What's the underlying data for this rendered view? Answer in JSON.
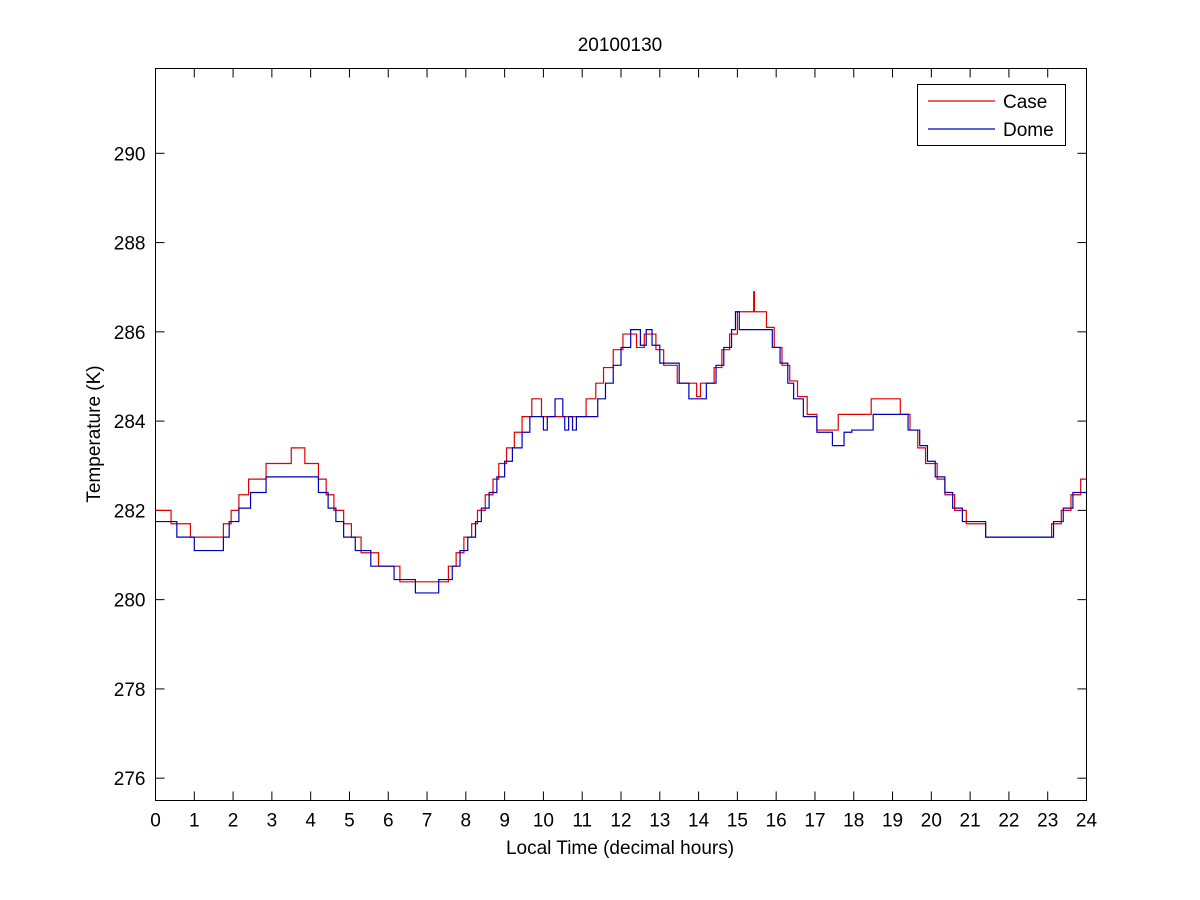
{
  "chart_data": {
    "type": "line",
    "title": "20100130",
    "xlabel": "Local Time (decimal hours)",
    "ylabel": "Temperature (K)",
    "xlim": [
      0,
      24
    ],
    "ylim": [
      275.5,
      291.9
    ],
    "x_ticks": [
      0,
      1,
      2,
      3,
      4,
      5,
      6,
      7,
      8,
      9,
      10,
      11,
      12,
      13,
      14,
      15,
      16,
      17,
      18,
      19,
      20,
      21,
      22,
      23,
      24
    ],
    "y_ticks": [
      276,
      278,
      280,
      282,
      284,
      286,
      288,
      290
    ],
    "grid": false,
    "legend_position": "top-right",
    "series": [
      {
        "name": "Case",
        "color": "#e00000",
        "step": true,
        "points": [
          [
            0,
            282.0
          ],
          [
            0.4,
            281.7
          ],
          [
            0.9,
            281.4
          ],
          [
            1.75,
            281.7
          ],
          [
            1.95,
            282.0
          ],
          [
            2.15,
            282.35
          ],
          [
            2.4,
            282.7
          ],
          [
            2.85,
            283.05
          ],
          [
            3.5,
            283.4
          ],
          [
            3.85,
            283.05
          ],
          [
            4.2,
            282.7
          ],
          [
            4.4,
            282.35
          ],
          [
            4.6,
            282.0
          ],
          [
            4.85,
            281.7
          ],
          [
            5.05,
            281.4
          ],
          [
            5.3,
            281.05
          ],
          [
            5.75,
            280.75
          ],
          [
            6.3,
            280.4
          ],
          [
            7.55,
            280.75
          ],
          [
            7.75,
            281.05
          ],
          [
            7.95,
            281.4
          ],
          [
            8.15,
            281.7
          ],
          [
            8.3,
            282.0
          ],
          [
            8.5,
            282.35
          ],
          [
            8.7,
            282.7
          ],
          [
            8.85,
            283.05
          ],
          [
            9.05,
            283.4
          ],
          [
            9.25,
            283.75
          ],
          [
            9.45,
            284.1
          ],
          [
            9.7,
            284.5
          ],
          [
            9.95,
            284.1
          ],
          [
            11.1,
            284.5
          ],
          [
            11.35,
            284.85
          ],
          [
            11.55,
            285.2
          ],
          [
            11.8,
            285.6
          ],
          [
            12.05,
            285.95
          ],
          [
            12.4,
            285.65
          ],
          [
            12.6,
            285.95
          ],
          [
            12.9,
            285.6
          ],
          [
            13.1,
            285.25
          ],
          [
            13.45,
            284.85
          ],
          [
            13.95,
            284.55
          ],
          [
            14.05,
            284.85
          ],
          [
            14.4,
            285.2
          ],
          [
            14.6,
            285.6
          ],
          [
            14.8,
            285.95
          ],
          [
            15.0,
            286.45
          ],
          [
            15.42,
            286.9
          ],
          [
            15.44,
            286.45
          ],
          [
            15.75,
            286.1
          ],
          [
            15.95,
            285.65
          ],
          [
            16.15,
            285.25
          ],
          [
            16.35,
            284.9
          ],
          [
            16.55,
            284.55
          ],
          [
            16.8,
            284.15
          ],
          [
            17.05,
            283.8
          ],
          [
            17.6,
            284.15
          ],
          [
            18.45,
            284.5
          ],
          [
            19.2,
            284.15
          ],
          [
            19.45,
            283.8
          ],
          [
            19.65,
            283.4
          ],
          [
            19.85,
            283.05
          ],
          [
            20.15,
            282.7
          ],
          [
            20.35,
            282.35
          ],
          [
            20.6,
            282.0
          ],
          [
            20.9,
            281.7
          ],
          [
            21.4,
            281.4
          ],
          [
            23.1,
            281.7
          ],
          [
            23.35,
            282.0
          ],
          [
            23.6,
            282.35
          ],
          [
            23.85,
            282.7
          ],
          [
            24,
            282.7
          ]
        ]
      },
      {
        "name": "Dome",
        "color": "#0000c0",
        "step": true,
        "points": [
          [
            0,
            281.75
          ],
          [
            0.55,
            281.4
          ],
          [
            1.0,
            281.1
          ],
          [
            1.75,
            281.4
          ],
          [
            1.9,
            281.75
          ],
          [
            2.15,
            282.05
          ],
          [
            2.45,
            282.4
          ],
          [
            2.85,
            282.75
          ],
          [
            4.2,
            282.4
          ],
          [
            4.45,
            282.05
          ],
          [
            4.65,
            281.75
          ],
          [
            4.85,
            281.4
          ],
          [
            5.15,
            281.1
          ],
          [
            5.55,
            280.75
          ],
          [
            6.15,
            280.45
          ],
          [
            6.7,
            280.15
          ],
          [
            7.3,
            280.45
          ],
          [
            7.65,
            280.75
          ],
          [
            7.85,
            281.1
          ],
          [
            8.05,
            281.4
          ],
          [
            8.25,
            281.75
          ],
          [
            8.4,
            282.05
          ],
          [
            8.6,
            282.4
          ],
          [
            8.8,
            282.75
          ],
          [
            9.0,
            283.1
          ],
          [
            9.2,
            283.4
          ],
          [
            9.45,
            283.75
          ],
          [
            9.65,
            284.1
          ],
          [
            10.0,
            283.8
          ],
          [
            10.1,
            284.1
          ],
          [
            10.3,
            284.5
          ],
          [
            10.5,
            284.1
          ],
          [
            10.55,
            283.8
          ],
          [
            10.65,
            284.1
          ],
          [
            10.75,
            283.8
          ],
          [
            10.85,
            284.1
          ],
          [
            11.4,
            284.5
          ],
          [
            11.6,
            284.85
          ],
          [
            11.8,
            285.25
          ],
          [
            12.0,
            285.65
          ],
          [
            12.25,
            286.05
          ],
          [
            12.5,
            285.7
          ],
          [
            12.65,
            286.05
          ],
          [
            12.8,
            285.7
          ],
          [
            13.0,
            285.3
          ],
          [
            13.5,
            284.85
          ],
          [
            13.75,
            284.5
          ],
          [
            14.2,
            284.85
          ],
          [
            14.45,
            285.25
          ],
          [
            14.65,
            285.65
          ],
          [
            14.85,
            286.05
          ],
          [
            14.95,
            286.45
          ],
          [
            15.05,
            286.05
          ],
          [
            15.9,
            285.65
          ],
          [
            16.1,
            285.3
          ],
          [
            16.3,
            284.85
          ],
          [
            16.45,
            284.5
          ],
          [
            16.7,
            284.1
          ],
          [
            17.05,
            283.75
          ],
          [
            17.45,
            283.45
          ],
          [
            17.75,
            283.75
          ],
          [
            17.95,
            283.8
          ],
          [
            18.5,
            284.15
          ],
          [
            19.4,
            283.8
          ],
          [
            19.7,
            283.45
          ],
          [
            19.9,
            283.1
          ],
          [
            20.1,
            282.75
          ],
          [
            20.35,
            282.4
          ],
          [
            20.55,
            282.05
          ],
          [
            20.8,
            281.75
          ],
          [
            21.4,
            281.4
          ],
          [
            23.15,
            281.75
          ],
          [
            23.4,
            282.05
          ],
          [
            23.65,
            282.4
          ],
          [
            23.85,
            282.4
          ],
          [
            24,
            282.4
          ]
        ]
      }
    ]
  }
}
